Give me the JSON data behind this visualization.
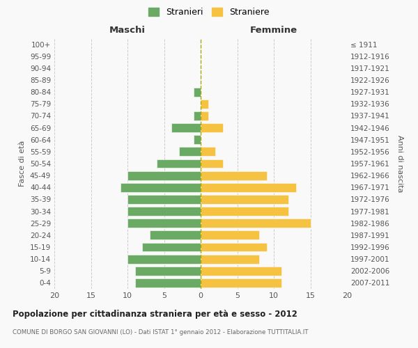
{
  "age_groups": [
    "0-4",
    "5-9",
    "10-14",
    "15-19",
    "20-24",
    "25-29",
    "30-34",
    "35-39",
    "40-44",
    "45-49",
    "50-54",
    "55-59",
    "60-64",
    "65-69",
    "70-74",
    "75-79",
    "80-84",
    "85-89",
    "90-94",
    "95-99",
    "100+"
  ],
  "birth_years": [
    "2007-2011",
    "2002-2006",
    "1997-2001",
    "1992-1996",
    "1987-1991",
    "1982-1986",
    "1977-1981",
    "1972-1976",
    "1967-1971",
    "1962-1966",
    "1957-1961",
    "1952-1956",
    "1947-1951",
    "1942-1946",
    "1937-1941",
    "1932-1936",
    "1927-1931",
    "1922-1926",
    "1917-1921",
    "1912-1916",
    "≤ 1911"
  ],
  "males": [
    9,
    9,
    10,
    8,
    7,
    10,
    10,
    10,
    11,
    10,
    6,
    3,
    1,
    4,
    1,
    0,
    1,
    0,
    0,
    0,
    0
  ],
  "females": [
    11,
    11,
    8,
    9,
    8,
    15,
    12,
    12,
    13,
    9,
    3,
    2,
    0,
    3,
    1,
    1,
    0,
    0,
    0,
    0,
    0
  ],
  "male_color": "#6aaa64",
  "female_color": "#f5c242",
  "background_color": "#f9f9f9",
  "grid_color": "#cccccc",
  "bar_edge_color": "#f9f9f9",
  "title": "Popolazione per cittadinanza straniera per età e sesso - 2012",
  "subtitle": "COMUNE DI BORGO SAN GIOVANNI (LO) - Dati ISTAT 1° gennaio 2012 - Elaborazione TUTTITALIA.IT",
  "xlabel_left": "Maschi",
  "xlabel_right": "Femmine",
  "ylabel_left": "Fasce di età",
  "ylabel_right": "Anni di nascita",
  "legend_male": "Stranieri",
  "legend_female": "Straniere",
  "xlim": 20
}
